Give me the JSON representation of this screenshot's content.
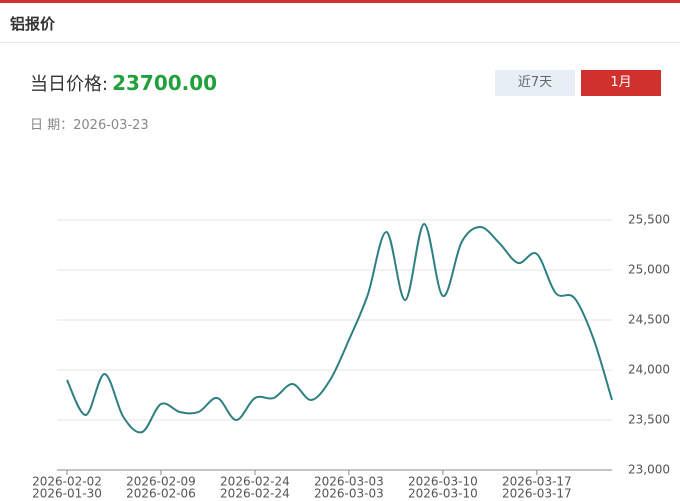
{
  "header": {
    "title": "铝报价"
  },
  "price": {
    "label": "当日价格:",
    "value": "23700.00"
  },
  "buttons": [
    "近7天",
    "1月"
  ],
  "date": {
    "label": "日 期：",
    "value": "2026-03-23"
  },
  "chart_data": {
    "type": "line",
    "categories": [
      "2026-02-02",
      null,
      null,
      null,
      null,
      "2026-02-09",
      null,
      null,
      null,
      null,
      "2026-02-24",
      null,
      null,
      null,
      null,
      "2026-03-03",
      null,
      null,
      null,
      null,
      "2026-03-10",
      null,
      null,
      null,
      null,
      "2026-03-17",
      null,
      null,
      null,
      null
    ],
    "xticks_lower": [
      "2026-01-30",
      "2026-02-06",
      "2026-02-24",
      "2026-03-03",
      "2026-03-10",
      "2026-03-17"
    ],
    "series": [
      {
        "color": "#2e7f82",
        "values": [
          23900,
          23550,
          23960,
          23530,
          23380,
          23660,
          23580,
          23580,
          23720,
          23500,
          23720,
          23720,
          23860,
          23700,
          23900,
          24300,
          24750,
          25380,
          24700,
          25460,
          24740,
          25280,
          25430,
          25270,
          25070,
          25160,
          24770,
          24720,
          24320,
          23700
        ]
      }
    ],
    "ylim": [
      23000,
      25500
    ],
    "yticks": [
      {
        "value": 23000,
        "label": "23,000"
      },
      {
        "value": 23500,
        "label": "23,500"
      },
      {
        "value": 24000,
        "label": "24,000"
      },
      {
        "value": 24500,
        "label": "24,500"
      },
      {
        "value": 25000,
        "label": "25,000"
      },
      {
        "value": 25500,
        "label": "25,500"
      }
    ],
    "grid": true
  }
}
